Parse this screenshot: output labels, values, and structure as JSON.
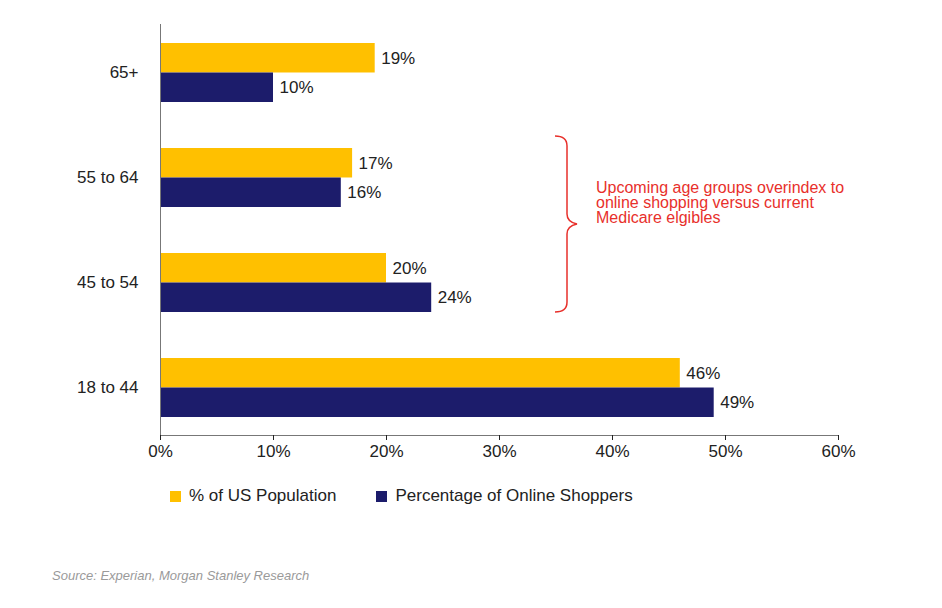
{
  "chart_data": {
    "type": "bar",
    "orientation": "horizontal",
    "categories": [
      "65+",
      "55 to 64",
      "45 to 54",
      "18 to 44"
    ],
    "series": [
      {
        "name": "% of US Population",
        "color": "#FFC000",
        "values": [
          19,
          17,
          20,
          46
        ],
        "value_labels": [
          "19%",
          "17%",
          "20%",
          "46%"
        ]
      },
      {
        "name": "Percentage of Online Shoppers",
        "color": "#1C1C6B",
        "values": [
          10,
          16,
          24,
          49
        ],
        "value_labels": [
          "10%",
          "16%",
          "24%",
          "49%"
        ]
      }
    ],
    "xlim": [
      0,
      60
    ],
    "xticks": [
      {
        "value": 0,
        "label": "0%"
      },
      {
        "value": 10,
        "label": "10%"
      },
      {
        "value": 20,
        "label": "20%"
      },
      {
        "value": 30,
        "label": "30%"
      },
      {
        "value": 40,
        "label": "40%"
      },
      {
        "value": 50,
        "label": "50%"
      },
      {
        "value": 60,
        "label": "60%"
      }
    ],
    "grid": false,
    "legend": "bottom",
    "data_labels": true,
    "annotation": "Upcoming age groups overindex to online shopping versus current Medicare elgibles",
    "source": "Source: Experian, Morgan Stanley Research"
  }
}
